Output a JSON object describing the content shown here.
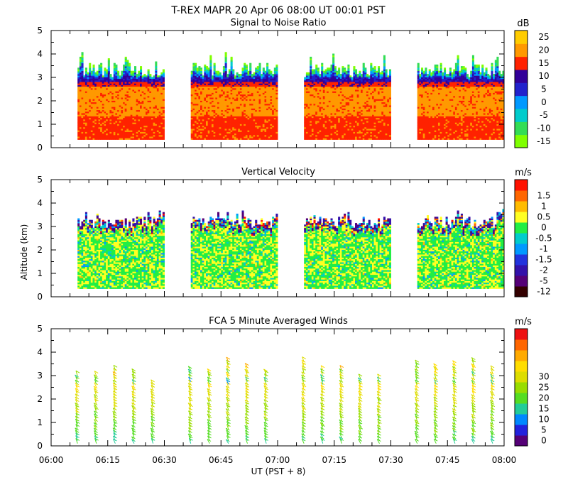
{
  "header": {
    "line1": "T-REX   MAPR 20 Apr 06   08:00 UT   00:01   PST"
  },
  "xaxis": {
    "label": "UT  (PST + 8)",
    "ticks": [
      "06:00",
      "06:15",
      "06:30",
      "06:45",
      "07:00",
      "07:15",
      "07:30",
      "07:45",
      "08:00"
    ]
  },
  "ylabel": "Altitude (km)",
  "colors": {
    "snr": [
      "#7fff00",
      "#33dd55",
      "#00cccc",
      "#0099ff",
      "#2222cc",
      "#330099",
      "#ff2200",
      "#ff9900",
      "#ffcc00"
    ],
    "vv": [
      "#330000",
      "#550077",
      "#3311aa",
      "#2233dd",
      "#0099ff",
      "#00cccc",
      "#22ee44",
      "#ffff22",
      "#ffbb00",
      "#ff6600",
      "#ff1100"
    ],
    "wind": [
      "#550077",
      "#2222dd",
      "#0088ff",
      "#22cc99",
      "#55dd22",
      "#99dd00",
      "#dddd00",
      "#ffdd00",
      "#ffaa00",
      "#ff6600",
      "#ee1111"
    ]
  },
  "chart_data": [
    {
      "type": "heatmap",
      "title": "Signal to Noise Ratio",
      "units": "dB",
      "xlabel": "UT  (PST + 8)",
      "ylabel": "Altitude (km)",
      "xlim": [
        "06:00",
        "08:00"
      ],
      "ylim": [
        0,
        5
      ],
      "yticks": [
        "0",
        "1",
        "2",
        "3",
        "4",
        "5"
      ],
      "colorbar_labels": [
        "-15",
        "-10",
        "-5",
        "0",
        "5",
        "10",
        "15",
        "20",
        "25"
      ],
      "data_segments_ut": [
        [
          "06:07",
          "06:30"
        ],
        [
          "06:37",
          "07:00"
        ],
        [
          "07:07",
          "07:30"
        ],
        [
          "07:37",
          "08:00"
        ]
      ],
      "altitude_range_km": [
        0.35,
        4.2
      ]
    },
    {
      "type": "heatmap",
      "title": "Vertical Velocity",
      "units": "m/s",
      "xlabel": "UT  (PST + 8)",
      "ylabel": "Altitude (km)",
      "xlim": [
        "06:00",
        "08:00"
      ],
      "ylim": [
        0,
        5
      ],
      "yticks": [
        "0",
        "1",
        "2",
        "3",
        "4",
        "5"
      ],
      "colorbar_labels": [
        "-12",
        "-5",
        "-2",
        "-1.5",
        "-1",
        "-0.5",
        "0",
        "0.5",
        "1",
        "1.5"
      ],
      "data_segments_ut": [
        [
          "06:07",
          "06:30"
        ],
        [
          "06:37",
          "07:00"
        ],
        [
          "07:07",
          "07:30"
        ],
        [
          "07:37",
          "08:00"
        ]
      ],
      "altitude_range_km": [
        0.35,
        3.8
      ]
    },
    {
      "type": "scatter",
      "title": "FCA 5 Minute Averaged Winds",
      "units": "m/s",
      "xlabel": "UT  (PST + 8)",
      "ylabel": "Altitude (km)",
      "xlim": [
        "06:00",
        "08:00"
      ],
      "ylim": [
        0,
        5
      ],
      "yticks": [
        "0",
        "1",
        "2",
        "3",
        "4",
        "5"
      ],
      "colorbar_labels": [
        "0",
        "5",
        "10",
        "15",
        "20",
        "25",
        "30"
      ],
      "profile_times_ut": [
        "06:07",
        "06:12",
        "06:17",
        "06:22",
        "06:27",
        "06:37",
        "06:42",
        "06:47",
        "06:52",
        "06:57",
        "07:07",
        "07:12",
        "07:17",
        "07:22",
        "07:27",
        "07:37",
        "07:42",
        "07:47",
        "07:52",
        "07:57"
      ],
      "profile_top_km": [
        3.1,
        3.1,
        3.3,
        3.2,
        2.7,
        3.3,
        3.2,
        3.6,
        3.4,
        3.2,
        3.6,
        3.3,
        3.3,
        2.9,
        2.9,
        3.5,
        3.4,
        3.5,
        3.6,
        3.3
      ]
    }
  ]
}
